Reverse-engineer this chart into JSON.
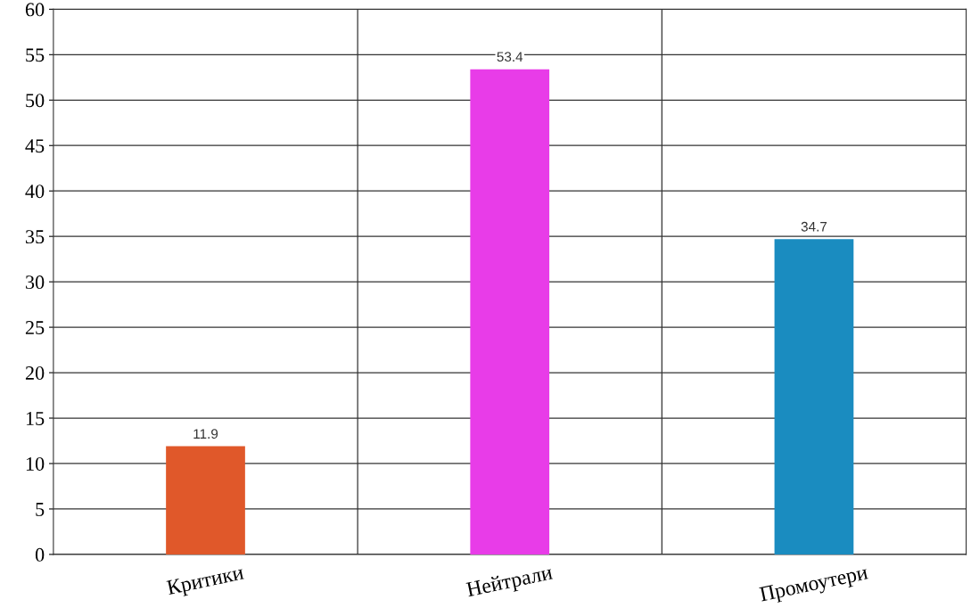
{
  "chart_data": {
    "type": "bar",
    "categories": [
      "Критики",
      "Нейтрали",
      "Промоутери"
    ],
    "values": [
      11.9,
      53.4,
      34.7
    ],
    "colors": [
      "#e0582a",
      "#e83ce8",
      "#1a8cc0"
    ],
    "ylim": [
      0,
      60
    ],
    "yticks": [
      0,
      5,
      10,
      15,
      20,
      25,
      30,
      35,
      40,
      45,
      50,
      55,
      60
    ],
    "grid": true,
    "data_labels": true
  }
}
